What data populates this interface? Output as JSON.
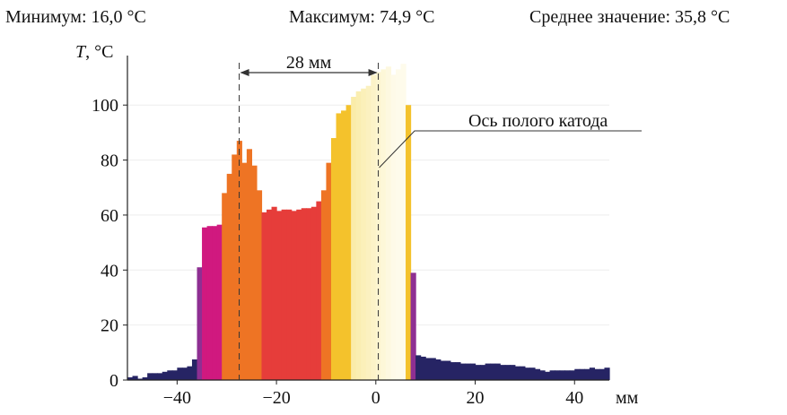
{
  "stats": {
    "min": "Минимум: 16,0 °C",
    "max": "Максимум: 74,9 °C",
    "mean": "Среднее значение: 35,8 °C"
  },
  "chart_data": {
    "type": "bar",
    "title": "",
    "ylabel_italic": "T",
    "ylabel_rest": ", °C",
    "xlabel": "мм",
    "xlim": [
      -50,
      47
    ],
    "ylim": [
      0,
      118
    ],
    "xticks": [
      -40,
      -20,
      0,
      20,
      40
    ],
    "yticks": [
      0,
      20,
      40,
      60,
      80,
      100
    ],
    "xtick_labels": [
      "−40",
      "−20",
      "0",
      "20",
      "40"
    ],
    "grid": true,
    "annotations": {
      "distance_label": "28 мм",
      "distance_from": -28,
      "distance_to": 0,
      "axis_label": "Ось полого катода",
      "axis_x": 0
    },
    "bars": [
      [
        -50,
        1
      ],
      [
        -49,
        1.5
      ],
      [
        -48,
        0.5
      ],
      [
        -47,
        1
      ],
      [
        -46,
        2.5
      ],
      [
        -45,
        2.5
      ],
      [
        -44,
        2.5
      ],
      [
        -43,
        3
      ],
      [
        -42,
        3.5
      ],
      [
        -41,
        3.5
      ],
      [
        -40,
        4.5
      ],
      [
        -39,
        4.5
      ],
      [
        -38,
        5
      ],
      [
        -37,
        7.5
      ],
      [
        -36,
        41
      ],
      [
        -35,
        55.5
      ],
      [
        -34,
        56
      ],
      [
        -33,
        56
      ],
      [
        -32,
        56.5
      ],
      [
        -31,
        68
      ],
      [
        -30,
        75
      ],
      [
        -29,
        82
      ],
      [
        -28,
        87
      ],
      [
        -27,
        79
      ],
      [
        -26,
        84
      ],
      [
        -25,
        78
      ],
      [
        -24,
        69
      ],
      [
        -23,
        61
      ],
      [
        -22,
        62
      ],
      [
        -21,
        63
      ],
      [
        -20,
        61.5
      ],
      [
        -19,
        62
      ],
      [
        -18,
        62
      ],
      [
        -17,
        61.5
      ],
      [
        -16,
        62
      ],
      [
        -15,
        62.5
      ],
      [
        -14,
        62.5
      ],
      [
        -13,
        63
      ],
      [
        -12,
        65
      ],
      [
        -11,
        69
      ],
      [
        -10,
        79
      ],
      [
        -9,
        88
      ],
      [
        -8,
        97
      ],
      [
        -7,
        98
      ],
      [
        -6,
        100
      ],
      [
        -5,
        103
      ],
      [
        -4,
        105
      ],
      [
        -3,
        106
      ],
      [
        -2,
        107
      ],
      [
        -1,
        111
      ],
      [
        0,
        112
      ],
      [
        1,
        113
      ],
      [
        2,
        114
      ],
      [
        3,
        111
      ],
      [
        4,
        113
      ],
      [
        5,
        115
      ],
      [
        6,
        100
      ],
      [
        7,
        39
      ],
      [
        8,
        9
      ],
      [
        9,
        8.5
      ],
      [
        10,
        8
      ],
      [
        11,
        8
      ],
      [
        12,
        7.5
      ],
      [
        13,
        7
      ],
      [
        14,
        7
      ],
      [
        15,
        6.5
      ],
      [
        16,
        6.5
      ],
      [
        17,
        6
      ],
      [
        18,
        6
      ],
      [
        19,
        6
      ],
      [
        20,
        5.5
      ],
      [
        21,
        5.5
      ],
      [
        22,
        6
      ],
      [
        23,
        6
      ],
      [
        24,
        6
      ],
      [
        25,
        5.5
      ],
      [
        26,
        5.5
      ],
      [
        27,
        5.5
      ],
      [
        28,
        5
      ],
      [
        29,
        5
      ],
      [
        30,
        4.5
      ],
      [
        31,
        4.5
      ],
      [
        32,
        4
      ],
      [
        33,
        3.5
      ],
      [
        34,
        3
      ],
      [
        35,
        3.5
      ],
      [
        36,
        3.5
      ],
      [
        37,
        3.5
      ],
      [
        38,
        3.5
      ],
      [
        39,
        3.5
      ],
      [
        40,
        4
      ],
      [
        41,
        4
      ],
      [
        42,
        4
      ],
      [
        43,
        4.5
      ],
      [
        44,
        4
      ],
      [
        45,
        4
      ],
      [
        46,
        4.5
      ]
    ],
    "colors": {
      "cold": "#262464",
      "magenta": "#d0197f",
      "orange": "#ee7424",
      "red": "#e63d3a",
      "yellow": "#f4c22c",
      "pale": "#fbf3ce",
      "purple": "#8e2f92",
      "axes": "#222222",
      "grid": "#eeeeee"
    }
  }
}
